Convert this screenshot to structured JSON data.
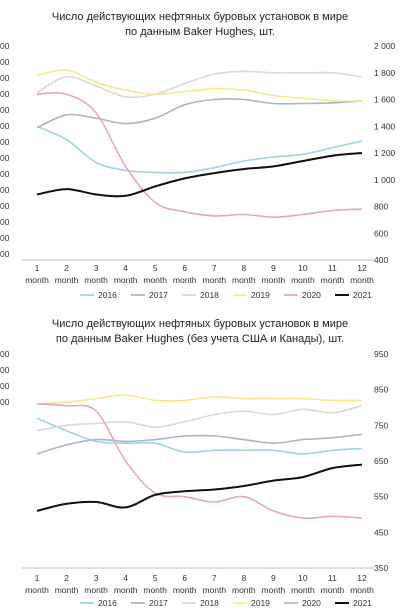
{
  "charts": [
    {
      "title_lines": [
        "Число действующих нефтяных буровых установок в мире",
        "по данным Baker Hughes, шт."
      ],
      "left_ticks": [
        "00",
        "00",
        "00",
        "00",
        "00",
        "00",
        "00",
        "00",
        "00",
        "00",
        "00",
        "00",
        "00",
        "00"
      ],
      "month_label": "month"
    },
    {
      "title_lines": [
        "Число действующих нефтяных буровых установок в мире",
        "по данным Baker Hughes (без учета США и Канады), шт."
      ],
      "left_ticks": [
        "00",
        "00",
        "00",
        "00"
      ],
      "month_label": "month"
    }
  ],
  "chart_data": [
    {
      "type": "line",
      "title": "Число действующих нефтяных буровых установок в мире по данным Baker Hughes, шт.",
      "categories": [
        "1",
        "2",
        "3",
        "4",
        "5",
        "6",
        "7",
        "8",
        "9",
        "10",
        "11",
        "12"
      ],
      "yaxis_side": "right",
      "ylim": [
        400,
        2000
      ],
      "yticks": [
        400,
        600,
        800,
        1000,
        1200,
        1400,
        1600,
        1800,
        2000
      ],
      "ytick_labels": [
        "400",
        "600",
        "800",
        "1 000",
        "1 200",
        "1 400",
        "1 600",
        "1 800",
        "2 000"
      ],
      "legend": "bottom",
      "series": [
        {
          "name": "2016",
          "color": "#9fd3e6",
          "values": [
            1400,
            1300,
            1130,
            1070,
            1055,
            1055,
            1090,
            1140,
            1170,
            1190,
            1240,
            1290
          ]
        },
        {
          "name": "2017",
          "color": "#a9b5c8",
          "values": [
            1390,
            1485,
            1460,
            1420,
            1460,
            1560,
            1600,
            1600,
            1570,
            1570,
            1575,
            1590
          ]
        },
        {
          "name": "2018",
          "color": "#d9d9d9",
          "values": [
            1650,
            1770,
            1700,
            1620,
            1640,
            1720,
            1790,
            1810,
            1800,
            1800,
            1800,
            1770
          ]
        },
        {
          "name": "2019",
          "color": "#f6e98c",
          "values": [
            1780,
            1820,
            1730,
            1670,
            1640,
            1660,
            1680,
            1670,
            1630,
            1610,
            1590,
            1590
          ]
        },
        {
          "name": "2020",
          "color": "#e4a9be",
          "values": [
            1640,
            1640,
            1500,
            1100,
            830,
            760,
            730,
            740,
            720,
            740,
            770,
            780
          ]
        },
        {
          "name": "2021",
          "color": "#111111",
          "values": [
            890,
            930,
            890,
            880,
            950,
            1010,
            1050,
            1080,
            1100,
            1140,
            1180,
            1200
          ]
        }
      ]
    },
    {
      "type": "line",
      "title": "Число действующих нефтяных буровых установок в мире по данным Baker Hughes (без учета США и Канады), шт.",
      "categories": [
        "1",
        "2",
        "3",
        "4",
        "5",
        "6",
        "7",
        "8",
        "9",
        "10",
        "11",
        "12"
      ],
      "yaxis_side": "right",
      "ylim": [
        350,
        950
      ],
      "yticks": [
        350,
        450,
        550,
        650,
        750,
        850,
        950
      ],
      "ytick_labels": [
        "350",
        "450",
        "550",
        "650",
        "750",
        "850",
        "950"
      ],
      "legend": "bottom",
      "series": [
        {
          "name": "2016",
          "color": "#9fd3e6",
          "values": [
            770,
            735,
            705,
            700,
            700,
            675,
            680,
            680,
            680,
            670,
            680,
            685
          ]
        },
        {
          "name": "2017",
          "color": "#a9b5c8",
          "values": [
            670,
            695,
            710,
            705,
            710,
            720,
            720,
            710,
            700,
            710,
            715,
            725
          ]
        },
        {
          "name": "2018",
          "color": "#d9d9d9",
          "values": [
            735,
            750,
            755,
            760,
            745,
            760,
            780,
            790,
            780,
            795,
            785,
            805
          ]
        },
        {
          "name": "2019",
          "color": "#f6e98c",
          "values": [
            810,
            815,
            825,
            835,
            820,
            820,
            830,
            825,
            825,
            825,
            820,
            820
          ]
        },
        {
          "name": "2020",
          "color": "#e4a9be",
          "values": [
            810,
            805,
            790,
            650,
            560,
            550,
            535,
            550,
            510,
            490,
            495,
            490
          ]
        },
        {
          "name": "2021",
          "color": "#111111",
          "values": [
            510,
            530,
            535,
            520,
            555,
            565,
            570,
            580,
            595,
            605,
            630,
            640
          ]
        }
      ]
    }
  ]
}
